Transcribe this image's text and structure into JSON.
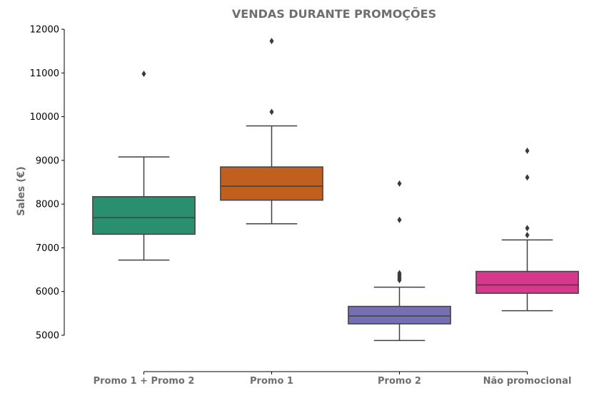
{
  "chart_data": {
    "type": "box",
    "title": "VENDAS DURANTE PROMOÇÕES",
    "ylabel": "Sales (€)",
    "xlabel": "",
    "ylim": [
      5000,
      12000
    ],
    "yticks": [
      "5000",
      "6000",
      "7000",
      "8000",
      "9000",
      "10000",
      "11000",
      "12000"
    ],
    "grid": false,
    "categories": [
      "Promo 1 + Promo 2",
      "Promo 1",
      "Promo 2",
      "Não promocional"
    ],
    "boxes": [
      {
        "category": "Promo 1 + Promo 2",
        "whisker_low": 6720,
        "q1": 7310,
        "median": 7690,
        "q3": 8170,
        "whisker_high": 9080,
        "outliers": [
          10980
        ],
        "color": "#2a8f6f"
      },
      {
        "category": "Promo 1",
        "whisker_low": 7550,
        "q1": 8090,
        "median": 8410,
        "q3": 8850,
        "whisker_high": 9790,
        "outliers": [
          10110,
          11730
        ],
        "color": "#c1601e"
      },
      {
        "category": "Promo 2",
        "whisker_low": 4880,
        "q1": 5260,
        "median": 5440,
        "q3": 5660,
        "whisker_high": 6100,
        "outliers": [
          6260,
          6300,
          6340,
          6380,
          6420,
          7640,
          8470
        ],
        "color": "#7570b3"
      },
      {
        "category": "Não promocional",
        "whisker_low": 5560,
        "q1": 5960,
        "median": 6150,
        "q3": 6460,
        "whisker_high": 7180,
        "outliers": [
          7290,
          7450,
          8610,
          9220
        ],
        "color": "#d6398c"
      }
    ]
  }
}
